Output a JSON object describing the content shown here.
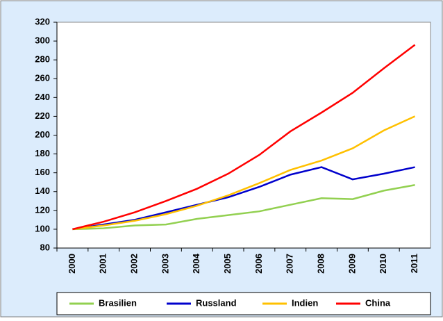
{
  "chart_data": {
    "type": "line",
    "categories": [
      "2000",
      "2001",
      "2002",
      "2003",
      "2004",
      "2005",
      "2006",
      "2007",
      "2008",
      "2009",
      "2010",
      "2011"
    ],
    "series": [
      {
        "name": "Brasilien",
        "color": "#92d050",
        "values": [
          100,
          101,
          104,
          105,
          111,
          115,
          119,
          126,
          133,
          132,
          141,
          147
        ]
      },
      {
        "name": "Russland",
        "color": "#0000cc",
        "values": [
          100,
          105,
          110,
          118,
          126,
          134,
          145,
          158,
          166,
          153,
          159,
          166
        ]
      },
      {
        "name": "Indien",
        "color": "#ffc000",
        "values": [
          100,
          104,
          109,
          116,
          125,
          136,
          149,
          163,
          173,
          186,
          205,
          220
        ]
      },
      {
        "name": "China",
        "color": "#ff0000",
        "values": [
          100,
          108,
          118,
          130,
          143,
          159,
          179,
          204,
          224,
          245,
          271,
          296
        ]
      }
    ],
    "ylim": [
      80,
      320
    ],
    "yticks": [
      80,
      100,
      120,
      140,
      160,
      180,
      200,
      220,
      240,
      260,
      280,
      300,
      320
    ],
    "grid": false,
    "legend": "bottom"
  }
}
